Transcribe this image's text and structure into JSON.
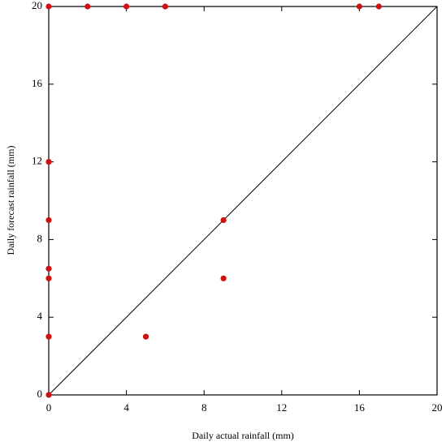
{
  "chart_data": {
    "type": "scatter",
    "x_label": "Daily actual rainfall (mm)",
    "y_label": "Daily forecast rainfall (mm)",
    "series": [
      {
        "color": "#d01010",
        "x": [
          0,
          2,
          4,
          6,
          16,
          17,
          0,
          0,
          0,
          0,
          0,
          0,
          5,
          9,
          9
        ],
        "values": [
          20,
          20,
          20,
          20,
          20,
          20,
          12,
          9,
          6.5,
          6,
          3,
          0,
          3,
          9,
          6
        ]
      }
    ],
    "xlim": [
      0,
      20
    ],
    "ylim": [
      0,
      20
    ],
    "xticks": [
      0,
      4,
      8,
      12,
      16,
      20
    ],
    "yticks": [
      0,
      4,
      8,
      12,
      16,
      20
    ]
  }
}
